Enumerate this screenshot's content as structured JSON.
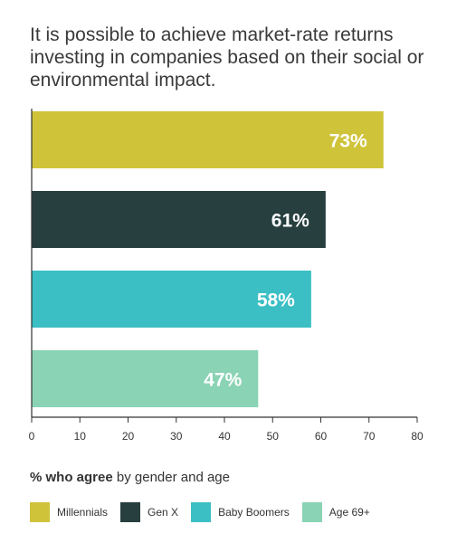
{
  "title": "It is possible to achieve market-rate returns investing in companies based on their social or environmental impact.",
  "subtitle": {
    "bold": "% who agree",
    "rest": " by gender and age"
  },
  "chart_data": {
    "type": "bar",
    "orientation": "horizontal",
    "title": "It is possible to achieve market-rate returns investing in companies based on their social or environmental impact.",
    "xlabel": "% who agree by gender and age",
    "ylabel": "",
    "xlim": [
      0,
      80
    ],
    "x_ticks": [
      0,
      10,
      20,
      30,
      40,
      50,
      60,
      70,
      80
    ],
    "grid": false,
    "legend_placement": "bottom",
    "categories": [
      "Millennials",
      "Gen X",
      "Baby Boomers",
      "Age 69+"
    ],
    "values": [
      73,
      61,
      58,
      47
    ],
    "data_labels": [
      "73%",
      "61%",
      "58%",
      "47%"
    ],
    "colors": [
      "#cfc33a",
      "#27403f",
      "#3bbfc4",
      "#8ad3b5"
    ]
  },
  "legend": [
    {
      "label": "Millennials",
      "color": "#cfc33a"
    },
    {
      "label": "Gen X",
      "color": "#27403f"
    },
    {
      "label": "Baby Boomers",
      "color": "#3bbfc4"
    },
    {
      "label": "Age 69+",
      "color": "#8ad3b5"
    }
  ]
}
